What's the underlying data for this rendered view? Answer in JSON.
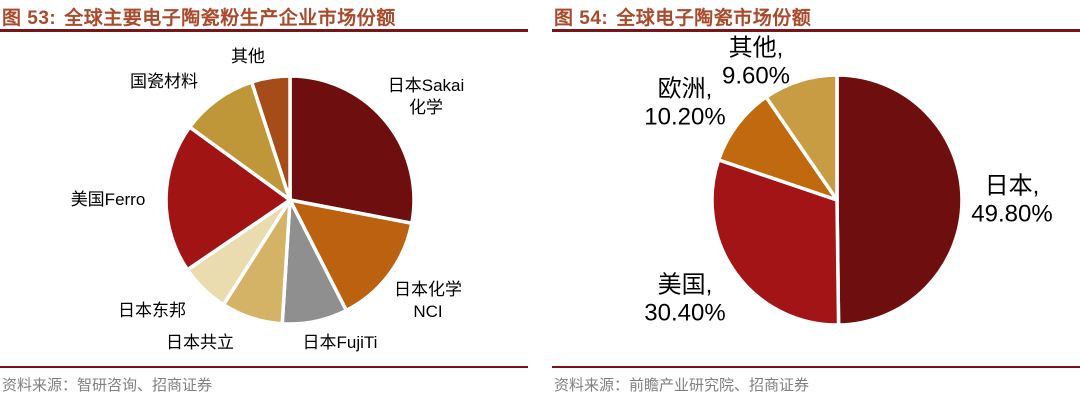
{
  "page": {
    "background": "#ffffff",
    "title_color": "#a94a2d",
    "rule_color": "#7a1416",
    "source_color": "#808080"
  },
  "figures": [
    {
      "title_prefix": "图 53:",
      "title_text": "全球主要电子陶瓷粉生产企业市场份额",
      "source": "资料来源：智研咨询、招商证券"
    },
    {
      "title_prefix": "图 54:",
      "title_text": "全球电子陶瓷市场份额",
      "source": "资料来源：前瞻产业研究院、招商证券"
    }
  ],
  "chart_data": [
    {
      "type": "pie",
      "title": "图 53: 全球主要电子陶瓷粉生产企业市场份额",
      "labels": [
        "日本Sakai化学",
        "日本化学NCI",
        "日本FujiTi",
        "日本共立",
        "日本东邦",
        "美国Ferro",
        "国瓷材料",
        "其他"
      ],
      "ids": [
        "sakai",
        "nci",
        "fujiti",
        "kyoritsu",
        "toho",
        "ferro",
        "sinocera",
        "others"
      ],
      "values": [
        28,
        14.5,
        8.5,
        8,
        6.5,
        19.5,
        10,
        5
      ],
      "unit": "%",
      "start_angle_deg": 0,
      "direction": "clockwise",
      "colors": [
        "#6e0e0e",
        "#bc6110",
        "#8f8f8f",
        "#d4b266",
        "#ebdcb0",
        "#a01414",
        "#c09738",
        "#a54c18"
      ],
      "callouts": [
        "日本Sakai\n化学",
        "日本化学\nNCI",
        "日本FujiTi",
        "日本共立",
        "日本东邦",
        "美国Ferro",
        "国瓷材料",
        "其他"
      ],
      "legend": "none",
      "data_labels_shown": false
    },
    {
      "type": "pie",
      "title": "图 54: 全球电子陶瓷市场份额",
      "labels": [
        "日本",
        "美国",
        "欧洲",
        "其他"
      ],
      "ids": [
        "japan",
        "usa",
        "europe",
        "others"
      ],
      "values": [
        49.8,
        30.4,
        10.2,
        9.6
      ],
      "value_labels": [
        "49.80%",
        "30.40%",
        "10.20%",
        "9.60%"
      ],
      "unit": "%",
      "start_angle_deg": 0,
      "direction": "clockwise",
      "colors": [
        "#6e0e0e",
        "#a31416",
        "#c0690f",
        "#c89c42"
      ],
      "callouts": [
        "日本,\n49.80%",
        "美国,\n30.40%",
        "欧洲,\n10.20%",
        "其他,\n9.60%"
      ],
      "legend": "none",
      "data_labels_shown": true
    }
  ]
}
